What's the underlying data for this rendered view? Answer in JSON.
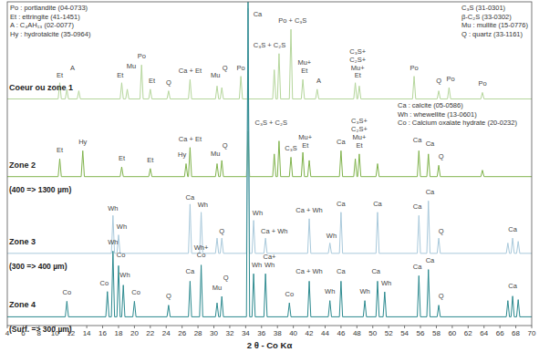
{
  "chart_data": {
    "type": "line",
    "x_label": "2 θ - Co Kα",
    "xlim": [
      4,
      70
    ],
    "xticks": [
      4,
      6,
      8,
      10,
      12,
      14,
      16,
      18,
      20,
      22,
      24,
      26,
      28,
      30,
      32,
      34,
      36,
      38,
      40,
      42,
      44,
      46,
      48,
      50,
      52,
      54,
      56,
      58,
      60,
      62,
      64,
      66,
      68,
      70
    ],
    "ylim": [
      0,
      100
    ],
    "tick_labels": "x",
    "grid": false,
    "keys": [
      [
        "Po : portlandite (04-0733)",
        "Et : ettringite (41-1451)",
        "A : C₄AH₁₃ (02-0077)",
        "Hy : hydrotalcite (35-0964)"
      ],
      [
        "C₃S (31-0301)",
        "β-C₂S (33-0302)",
        "Mu : mullite (15-0776)",
        "Q : quartz (33-1161)"
      ],
      [
        "Ca : calcite (05-0586)",
        "Wh : whewellite (13-0601)",
        "Co : Calcium oxalate hydrate (20-0232)"
      ]
    ],
    "series": [
      {
        "name": "Coeur ou zone 1",
        "color": "#b5d69c",
        "x": [
          4,
          10.4,
          10.6,
          10.8,
          11.3,
          11.5,
          11.7,
          12.8,
          13.0,
          13.2,
          18.2,
          18.4,
          18.6,
          18.9,
          19.1,
          19.3,
          20.7,
          20.9,
          21.1,
          21.8,
          22.0,
          22.2,
          24.1,
          24.3,
          24.5,
          26.8,
          27.0,
          27.2,
          30.2,
          30.4,
          30.6,
          30.8,
          31.0,
          31.2,
          33.2,
          33.4,
          33.6,
          37.4,
          37.6,
          37.8,
          38.0,
          38.2,
          38.4,
          39.5,
          39.7,
          39.9,
          41.0,
          41.2,
          41.4,
          42.8,
          43.0,
          43.2,
          47.6,
          47.8,
          48.0,
          48.1,
          48.3,
          48.5,
          55.0,
          55.2,
          55.4,
          58.1,
          58.3,
          58.5,
          59.4,
          59.6,
          59.8,
          63.6,
          63.8,
          64.0,
          70
        ],
        "values": [
          70,
          70,
          75,
          70,
          70,
          73,
          70,
          70,
          72.5,
          70,
          70,
          75,
          70,
          70,
          73,
          70,
          70,
          80.5,
          70,
          70,
          73,
          70,
          70,
          72.5,
          70,
          70,
          76,
          70,
          70,
          74,
          70,
          70,
          73.5,
          70,
          70,
          77,
          70,
          70,
          79,
          70,
          70,
          84,
          70,
          70,
          91.5,
          70,
          70,
          76,
          70,
          70,
          73,
          70,
          70,
          75,
          70,
          70,
          74,
          70,
          70,
          77,
          70,
          70,
          72.5,
          70,
          70,
          73.5,
          70,
          70,
          72,
          70,
          70
        ]
      },
      {
        "name": "Zone 2",
        "depth": "(400 => 1300 µm)",
        "color": "#80b34c",
        "x": [
          4,
          10.4,
          10.6,
          10.8,
          13.3,
          13.5,
          13.7,
          18.2,
          18.4,
          18.6,
          21.8,
          22.0,
          22.2,
          26.3,
          26.5,
          26.7,
          26.8,
          27.0,
          27.2,
          30.2,
          30.4,
          30.6,
          30.8,
          31.0,
          31.2,
          34.1,
          34.3,
          34.5,
          37.4,
          37.6,
          37.8,
          38.0,
          38.2,
          38.4,
          39.5,
          39.7,
          39.9,
          41.0,
          41.2,
          41.4,
          41.8,
          42.0,
          42.2,
          45.8,
          46.0,
          46.2,
          47.6,
          47.8,
          48.0,
          48.1,
          48.3,
          48.5,
          50.4,
          50.6,
          50.8,
          55.6,
          55.8,
          56.0,
          56.8,
          57.0,
          57.2,
          58.1,
          58.3,
          58.5,
          63.6,
          63.8,
          64.0,
          70
        ],
        "values": [
          46,
          46,
          51.5,
          46,
          46,
          54,
          46,
          46,
          49,
          46,
          46,
          48.5,
          46,
          46,
          50,
          46,
          46,
          55,
          46,
          46,
          50,
          46,
          46,
          51,
          46,
          46,
          60,
          46,
          46,
          53,
          46,
          46,
          57,
          46,
          46,
          52,
          46,
          46,
          53.5,
          46,
          46,
          51,
          46,
          46,
          54,
          46,
          46,
          51.5,
          46,
          46,
          53,
          46,
          46,
          50,
          46,
          46,
          54,
          46,
          46,
          53,
          46,
          46,
          49.5,
          46,
          46,
          48,
          46,
          46
        ]
      },
      {
        "name": "Zone 3",
        "depth": "(300 => 400 µm)",
        "color": "#a9c9db",
        "x": [
          4,
          17.1,
          17.3,
          17.5,
          17.8,
          18.0,
          18.2,
          26.8,
          27.0,
          27.2,
          28.2,
          28.4,
          28.6,
          30.2,
          30.4,
          30.6,
          30.8,
          31.0,
          31.2,
          34.1,
          34.3,
          34.5,
          34.8,
          35.0,
          35.2,
          36.3,
          36.5,
          36.7,
          41.8,
          42.0,
          42.2,
          44.4,
          44.6,
          44.8,
          45.8,
          46.0,
          46.2,
          50.4,
          50.6,
          50.8,
          55.6,
          55.8,
          56.0,
          56.8,
          57.0,
          57.2,
          58.1,
          58.3,
          58.5,
          66.8,
          67.0,
          67.2,
          67.4,
          67.6,
          67.8,
          68.1,
          68.3,
          68.5,
          70
        ],
        "values": [
          22.3,
          22.3,
          34,
          22.3,
          22.3,
          28,
          22.3,
          22.3,
          37.5,
          22.3,
          22.3,
          35,
          22.3,
          22.3,
          27,
          22.3,
          22.3,
          27,
          22.3,
          22.3,
          98,
          22.3,
          22.3,
          32.5,
          22.3,
          22.3,
          27,
          22.3,
          22.3,
          33,
          22.3,
          22.3,
          25.5,
          22.3,
          22.3,
          35,
          22.3,
          22.3,
          35,
          22.3,
          22.3,
          34,
          22.3,
          22.3,
          38.5,
          22.3,
          22.3,
          27,
          22.3,
          22.3,
          25.5,
          22.3,
          22.3,
          27,
          22.3,
          22.3,
          26,
          22.3,
          22.3
        ]
      },
      {
        "name": "Zone 4",
        "depth": "(Surf. => 300 µm)",
        "color": "#2c8a8f",
        "x": [
          4,
          11.3,
          11.5,
          11.7,
          16.4,
          16.6,
          16.8,
          17.1,
          17.3,
          17.5,
          17.8,
          18.0,
          18.2,
          18.4,
          18.6,
          18.8,
          19.8,
          20.0,
          20.2,
          24.1,
          24.3,
          24.5,
          26.8,
          27.0,
          27.2,
          28.2,
          28.4,
          28.6,
          30.2,
          30.4,
          30.6,
          30.8,
          31.0,
          31.2,
          34.1,
          34.3,
          34.5,
          34.8,
          35.0,
          35.2,
          36.3,
          36.5,
          36.7,
          39.3,
          39.5,
          39.7,
          41.8,
          42.0,
          42.2,
          44.4,
          44.6,
          44.8,
          45.8,
          46.0,
          46.2,
          48.8,
          49.0,
          49.2,
          50.4,
          50.6,
          50.8,
          51.3,
          51.5,
          51.7,
          55.6,
          55.8,
          56.0,
          56.8,
          57.0,
          57.2,
          58.1,
          58.3,
          58.5,
          66.8,
          67.0,
          67.2,
          67.4,
          67.6,
          67.8,
          68.1,
          68.3,
          68.5,
          70
        ],
        "values": [
          2.7,
          2.7,
          7.5,
          2.7,
          2.7,
          10.5,
          2.7,
          2.7,
          23,
          2.7,
          2.7,
          18.5,
          2.7,
          2.7,
          12.5,
          2.7,
          2.7,
          7.5,
          2.7,
          2.7,
          6.3,
          2.7,
          2.7,
          13.7,
          2.7,
          2.7,
          18.7,
          2.7,
          2.7,
          7,
          2.7,
          2.7,
          9,
          2.7,
          2.7,
          100,
          2.7,
          2.7,
          16,
          2.7,
          2.7,
          16,
          2.7,
          2.7,
          7,
          2.7,
          2.7,
          13.7,
          2.7,
          2.7,
          7.7,
          2.7,
          2.7,
          13.7,
          2.7,
          2.7,
          7.7,
          2.7,
          2.7,
          13.7,
          2.7,
          2.7,
          10.4,
          2.7,
          2.7,
          15.4,
          2.7,
          2.7,
          17.3,
          2.7,
          2.7,
          6.3,
          2.7,
          2.7,
          7.7,
          2.7,
          2.7,
          9.1,
          2.7,
          2.7,
          8,
          2.7,
          2.7
        ]
      }
    ],
    "annotations": [
      {
        "text": "Et",
        "x": 10.6,
        "y": 76.5
      },
      {
        "text": "A",
        "x": 12.2,
        "y": 79
      },
      {
        "text": "Et",
        "x": 18.2,
        "y": 76.5
      },
      {
        "text": "Mu",
        "x": 19.6,
        "y": 79.5
      },
      {
        "text": "Po",
        "x": 20.9,
        "y": 82.5
      },
      {
        "text": "Et",
        "x": 22.2,
        "y": 75
      },
      {
        "text": "Q",
        "x": 24.3,
        "y": 74.5
      },
      {
        "text": "Ca + Et",
        "x": 27.0,
        "y": 78
      },
      {
        "text": "Mu",
        "x": 30.2,
        "y": 76.5
      },
      {
        "text": "Q",
        "x": 31.4,
        "y": 79
      },
      {
        "text": "Po",
        "x": 33.4,
        "y": 79
      },
      {
        "text": "C₃S + C₂S",
        "x": 37.0,
        "y": 86
      },
      {
        "text": "Po + C₃S",
        "x": 39.9,
        "y": 93.5
      },
      {
        "text": "Mu+",
        "x": 41.4,
        "y": 80.5
      },
      {
        "text": "Et",
        "x": 41.4,
        "y": 78
      },
      {
        "text": "A",
        "x": 43.2,
        "y": 75
      },
      {
        "text": "C₃S+",
        "x": 48.1,
        "y": 84
      },
      {
        "text": "C₂S+",
        "x": 48.1,
        "y": 81.5
      },
      {
        "text": "Mu+",
        "x": 48.1,
        "y": 79
      },
      {
        "text": "Et",
        "x": 48.1,
        "y": 76.5
      },
      {
        "text": "Po",
        "x": 55.2,
        "y": 79
      },
      {
        "text": "Q",
        "x": 58.3,
        "y": 75
      },
      {
        "text": "Po",
        "x": 59.8,
        "y": 75.5
      },
      {
        "text": "Po",
        "x": 63.8,
        "y": 74
      },
      {
        "text": "Et",
        "x": 10.6,
        "y": 53.5
      },
      {
        "text": "Hy",
        "x": 13.5,
        "y": 56
      },
      {
        "text": "Et",
        "x": 18.4,
        "y": 51
      },
      {
        "text": "Et",
        "x": 22.0,
        "y": 50.5
      },
      {
        "text": "Hy",
        "x": 26.0,
        "y": 52
      },
      {
        "text": "Ca + Et",
        "x": 27.0,
        "y": 57
      },
      {
        "text": "Mu",
        "x": 30.2,
        "y": 52.5
      },
      {
        "text": "Q",
        "x": 31.4,
        "y": 55
      },
      {
        "text": "C₃S + C₂S",
        "x": 37.2,
        "y": 62
      },
      {
        "text": "C₃S",
        "x": 39.7,
        "y": 54
      },
      {
        "text": "Mu+",
        "x": 41.5,
        "y": 57.5
      },
      {
        "text": "Et",
        "x": 41.5,
        "y": 55
      },
      {
        "text": "Ca",
        "x": 46.0,
        "y": 56
      },
      {
        "text": "C₃S+",
        "x": 48.3,
        "y": 62.5
      },
      {
        "text": "C₂S+",
        "x": 48.3,
        "y": 60
      },
      {
        "text": "Mu+",
        "x": 48.3,
        "y": 57.5
      },
      {
        "text": "Et",
        "x": 48.3,
        "y": 55
      },
      {
        "text": "Ca",
        "x": 55.6,
        "y": 56.5
      },
      {
        "text": "Ca",
        "x": 57.2,
        "y": 55.5
      },
      {
        "text": "Q",
        "x": 58.6,
        "y": 51.5
      },
      {
        "text": "Wh",
        "x": 17.3,
        "y": 35.5
      },
      {
        "text": "Wh",
        "x": 18.4,
        "y": 30
      },
      {
        "text": "Ca",
        "x": 27.0,
        "y": 39
      },
      {
        "text": "Wh",
        "x": 28.6,
        "y": 36.5
      },
      {
        "text": "Q",
        "x": 31.0,
        "y": 28.5
      },
      {
        "text": "Ca",
        "x": 35.5,
        "y": 95.5
      },
      {
        "text": "Wh",
        "x": 35.5,
        "y": 34
      },
      {
        "text": "Ca + Wh",
        "x": 37.6,
        "y": 28.5
      },
      {
        "text": "Ca + Wh",
        "x": 42.0,
        "y": 35
      },
      {
        "text": "Wh",
        "x": 44.8,
        "y": 27
      },
      {
        "text": "Ca",
        "x": 46.0,
        "y": 37
      },
      {
        "text": "Ca",
        "x": 50.6,
        "y": 37
      },
      {
        "text": "Ca",
        "x": 55.6,
        "y": 36
      },
      {
        "text": "Ca",
        "x": 57.2,
        "y": 40.5
      },
      {
        "text": "Q",
        "x": 58.6,
        "y": 28.5
      },
      {
        "text": "Ca",
        "x": 67.6,
        "y": 29
      },
      {
        "text": "Co",
        "x": 11.5,
        "y": 9.5
      },
      {
        "text": "Co",
        "x": 16.2,
        "y": 12.5
      },
      {
        "text": "Wh",
        "x": 17.3,
        "y": 25
      },
      {
        "text": "Co",
        "x": 18.3,
        "y": 21
      },
      {
        "text": "Wh",
        "x": 18.8,
        "y": 15
      },
      {
        "text": "Co",
        "x": 20.2,
        "y": 9.5
      },
      {
        "text": "Q",
        "x": 24.3,
        "y": 8.5
      },
      {
        "text": "Ca",
        "x": 27.0,
        "y": 16
      },
      {
        "text": "Wh+",
        "x": 28.4,
        "y": 23.5
      },
      {
        "text": "Co",
        "x": 28.4,
        "y": 21
      },
      {
        "text": "Mu",
        "x": 30.4,
        "y": 11
      },
      {
        "text": "Q",
        "x": 31.5,
        "y": 14
      },
      {
        "text": "Wh",
        "x": 35.4,
        "y": 18
      },
      {
        "text": "Ca+",
        "x": 37.0,
        "y": 20.5
      },
      {
        "text": "Wh",
        "x": 37.0,
        "y": 18
      },
      {
        "text": "Co",
        "x": 39.5,
        "y": 9
      },
      {
        "text": "Ca + Wh",
        "x": 42.0,
        "y": 16
      },
      {
        "text": "Wh",
        "x": 44.6,
        "y": 10
      },
      {
        "text": "Ca",
        "x": 46.0,
        "y": 16
      },
      {
        "text": "Wh",
        "x": 49.0,
        "y": 10
      },
      {
        "text": "Ca",
        "x": 50.4,
        "y": 16
      },
      {
        "text": "Wh",
        "x": 51.7,
        "y": 12.5
      },
      {
        "text": "Ca",
        "x": 55.6,
        "y": 17.5
      },
      {
        "text": "Ca",
        "x": 57.2,
        "y": 19.5
      },
      {
        "text": "Q",
        "x": 58.6,
        "y": 8.5
      },
      {
        "text": "Ca",
        "x": 67.6,
        "y": 11.5
      }
    ]
  }
}
